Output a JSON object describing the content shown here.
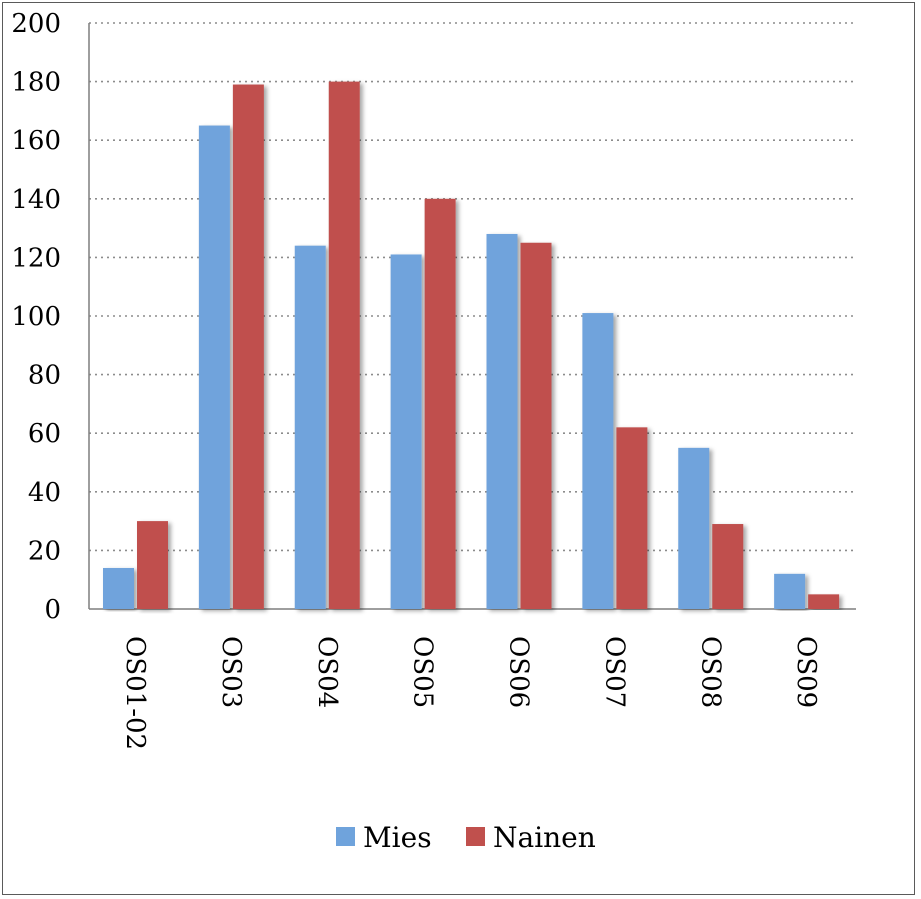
{
  "chart_data": {
    "type": "bar",
    "categories": [
      "OS01-02",
      "OS03",
      "OS04",
      "OS05",
      "OS06",
      "OS07",
      "OS08",
      "OS09"
    ],
    "series": [
      {
        "name": "Mies",
        "color": "#6fa3dc",
        "values": [
          14,
          165,
          124,
          121,
          128,
          101,
          55,
          12
        ]
      },
      {
        "name": "Nainen",
        "color": "#c0504d",
        "values": [
          30,
          179,
          180,
          140,
          125,
          62,
          29,
          5
        ]
      }
    ],
    "ylim": [
      0,
      200
    ],
    "yticks": [
      0,
      20,
      40,
      60,
      80,
      100,
      120,
      140,
      160,
      180,
      200
    ],
    "grid": "horizontal-dotted",
    "legend": "bottom",
    "title": "",
    "xlabel": "",
    "ylabel": ""
  }
}
